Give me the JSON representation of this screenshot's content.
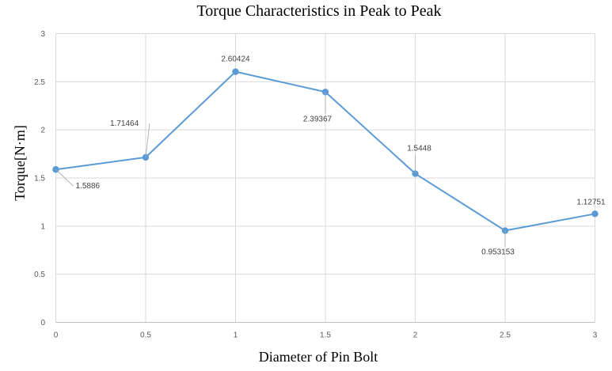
{
  "chart_data": {
    "type": "scatter",
    "title": "Torque Characteristics in Peak to Peak",
    "xlabel": "Diameter of Pin Bolt",
    "ylabel": "Torque[N·m]",
    "xlim": [
      0,
      3
    ],
    "ylim": [
      0,
      3
    ],
    "x_ticks": [
      "0",
      "0.5",
      "1",
      "1.5",
      "2",
      "2.5",
      "3"
    ],
    "y_ticks": [
      "0",
      "0.5",
      "1",
      "1.5",
      "2",
      "2.5",
      "3"
    ],
    "grid": true,
    "legend": "none",
    "series": [
      {
        "color": "#5b9bd5",
        "x": [
          0,
          0.5,
          1,
          1.5,
          2,
          2.5,
          3
        ],
        "y": [
          1.5886,
          1.71464,
          2.60424,
          2.39367,
          1.5448,
          0.953153,
          1.12751
        ],
        "labels": [
          "1.5886",
          "1.71464",
          "2.60424",
          "2.39367",
          "1.5448",
          "0.953153",
          "1.12751"
        ]
      }
    ]
  }
}
